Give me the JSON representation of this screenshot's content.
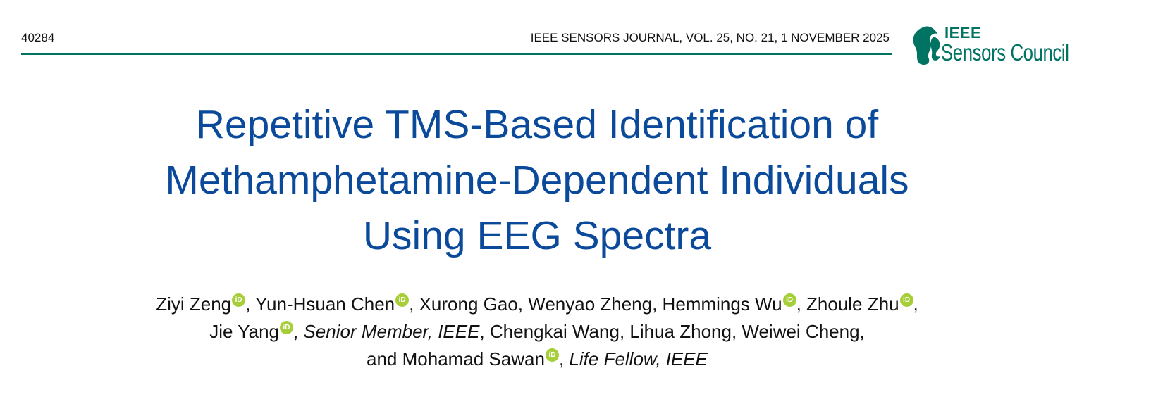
{
  "header": {
    "page_number": "40284",
    "journal": "IEEE SENSORS JOURNAL, VOL. 25, NO. 21, 1 NOVEMBER 2025",
    "logo": {
      "line1": "IEEE",
      "line2": "Sensors Council",
      "color": "#007363"
    }
  },
  "title": {
    "lines": [
      "Repetitive TMS-Based Identification of",
      "Methamphetamine-Dependent Individuals",
      "Using EEG Spectra"
    ],
    "color": "#0b4a9b"
  },
  "orcid_icon": {
    "label": "iD",
    "color": "#a6ce39"
  },
  "authors": {
    "a1": "Ziyi Zeng",
    "a2": "Yun-Hsuan Chen",
    "a3": "Xurong Gao, Wenyao Zheng, Hemmings Wu",
    "a4": "Zhoule Zhu",
    "a5": "Jie Yang",
    "a5_title": "Senior Member, IEEE",
    "a6": "Chengkai Wang, Lihua Zhong, Weiwei Cheng,",
    "a7": "and Mohamad Sawan",
    "a7_title": "Life Fellow, IEEE"
  }
}
